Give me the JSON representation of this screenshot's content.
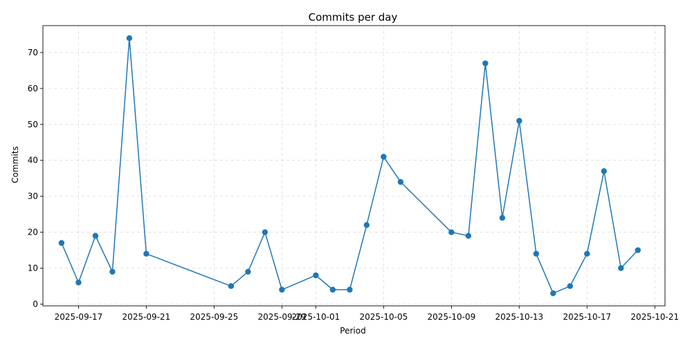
{
  "chart_data": {
    "type": "line",
    "title": "Commits per day",
    "xlabel": "Period",
    "ylabel": "Commits",
    "x_tick_labels": [
      "2025-09-17",
      "2025-09-21",
      "2025-09-25",
      "2025-09-29",
      "2025-10-01",
      "2025-10-05",
      "2025-10-09",
      "2025-10-13",
      "2025-10-17",
      "2025-10-21"
    ],
    "y_ticks": [
      0,
      10,
      20,
      30,
      40,
      50,
      60,
      70
    ],
    "ylim": [
      -0.5,
      77.5
    ],
    "xlim": [
      "2025-09-14T21:36",
      "2025-10-21T14:24"
    ],
    "grid": true,
    "series": [
      {
        "color": "#1f77b4",
        "marker": "circle",
        "points": [
          {
            "x": "2025-09-16",
            "y": 17
          },
          {
            "x": "2025-09-17",
            "y": 6
          },
          {
            "x": "2025-09-18",
            "y": 19
          },
          {
            "x": "2025-09-19",
            "y": 9
          },
          {
            "x": "2025-09-20",
            "y": 74
          },
          {
            "x": "2025-09-21",
            "y": 14
          },
          {
            "x": "2025-09-26",
            "y": 5
          },
          {
            "x": "2025-09-27",
            "y": 9
          },
          {
            "x": "2025-09-28",
            "y": 20
          },
          {
            "x": "2025-09-29",
            "y": 4
          },
          {
            "x": "2025-10-01",
            "y": 8
          },
          {
            "x": "2025-10-02",
            "y": 4
          },
          {
            "x": "2025-10-03",
            "y": 4
          },
          {
            "x": "2025-10-04",
            "y": 22
          },
          {
            "x": "2025-10-05",
            "y": 41
          },
          {
            "x": "2025-10-06",
            "y": 34
          },
          {
            "x": "2025-10-09",
            "y": 20
          },
          {
            "x": "2025-10-10",
            "y": 19
          },
          {
            "x": "2025-10-11",
            "y": 67
          },
          {
            "x": "2025-10-12",
            "y": 24
          },
          {
            "x": "2025-10-13",
            "y": 51
          },
          {
            "x": "2025-10-14",
            "y": 14
          },
          {
            "x": "2025-10-15",
            "y": 3
          },
          {
            "x": "2025-10-16",
            "y": 5
          },
          {
            "x": "2025-10-17",
            "y": 14
          },
          {
            "x": "2025-10-18",
            "y": 37
          },
          {
            "x": "2025-10-19",
            "y": 10
          },
          {
            "x": "2025-10-20",
            "y": 15
          }
        ]
      }
    ]
  }
}
